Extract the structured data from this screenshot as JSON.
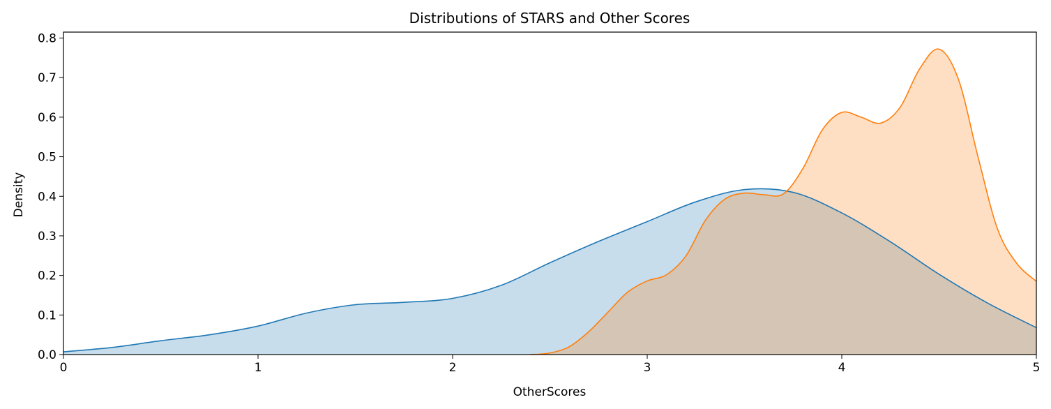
{
  "chart_data": {
    "type": "area",
    "title": "Distributions of STARS and Other Scores",
    "xlabel": "OtherScores",
    "ylabel": "Density",
    "xlim": [
      0,
      5
    ],
    "ylim": [
      0,
      0.815
    ],
    "xticks": [
      "0",
      "1",
      "2",
      "3",
      "4",
      "5"
    ],
    "yticks": [
      "0.0",
      "0.1",
      "0.2",
      "0.3",
      "0.4",
      "0.5",
      "0.6",
      "0.7",
      "0.8"
    ],
    "grid": false,
    "legend": "none",
    "series": [
      {
        "color": "#1f77b4",
        "fill": "#c6dbed",
        "x": [
          0,
          0.25,
          0.5,
          0.75,
          1.0,
          1.25,
          1.5,
          1.75,
          2.0,
          2.25,
          2.5,
          2.75,
          3.0,
          3.25,
          3.5,
          3.75,
          4.0,
          4.25,
          4.5,
          4.75,
          5.0
        ],
        "values": [
          0.007,
          0.018,
          0.035,
          0.05,
          0.072,
          0.105,
          0.126,
          0.132,
          0.142,
          0.175,
          0.232,
          0.286,
          0.336,
          0.386,
          0.417,
          0.41,
          0.358,
          0.285,
          0.203,
          0.13,
          0.068
        ]
      },
      {
        "color": "#ff7f0e",
        "fill": "#fedcbd",
        "x": [
          2.4,
          2.5,
          2.6,
          2.7,
          2.8,
          2.9,
          3.0,
          3.1,
          3.2,
          3.3,
          3.4,
          3.5,
          3.6,
          3.7,
          3.8,
          3.9,
          4.0,
          4.1,
          4.2,
          4.3,
          4.4,
          4.5,
          4.6,
          4.7,
          4.8,
          4.9,
          5.0
        ],
        "values": [
          0.0,
          0.004,
          0.02,
          0.058,
          0.108,
          0.158,
          0.186,
          0.202,
          0.25,
          0.34,
          0.393,
          0.408,
          0.404,
          0.406,
          0.47,
          0.568,
          0.612,
          0.6,
          0.585,
          0.625,
          0.722,
          0.772,
          0.695,
          0.5,
          0.318,
          0.23,
          0.185
        ]
      }
    ]
  }
}
